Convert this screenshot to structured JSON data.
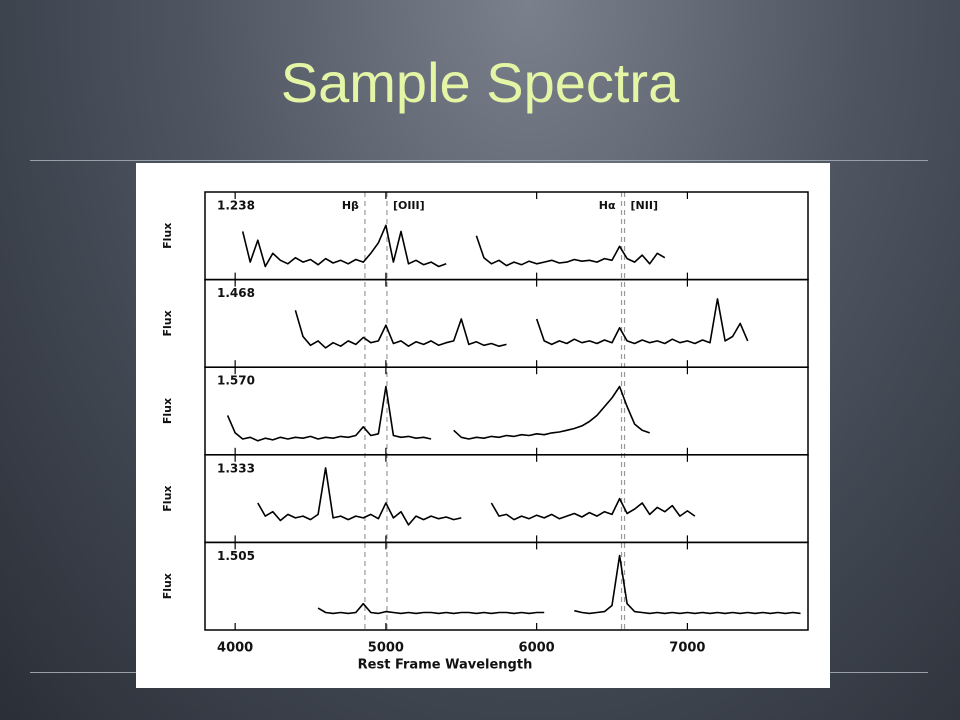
{
  "slide": {
    "title": "Sample Spectra"
  },
  "chart_data": {
    "type": "line",
    "xlabel": "Rest Frame Wavelength",
    "ylabel": "Flux",
    "xlim": [
      3800,
      7800
    ],
    "ylim": [
      0,
      1
    ],
    "xticks": [
      4000,
      5000,
      6000,
      7000
    ],
    "color": "#000000",
    "reference_lines": [
      {
        "x": 4861,
        "label": "Hβ"
      },
      {
        "x": 5007,
        "label": "[OIII]"
      },
      {
        "x": 6563,
        "label": "Hα"
      },
      {
        "x": 6583,
        "label": "[NII]"
      }
    ],
    "panels": [
      {
        "label": "1.238",
        "x": [
          4050,
          4100,
          4150,
          4200,
          4250,
          4300,
          4350,
          4400,
          4450,
          4500,
          4550,
          4600,
          4650,
          4700,
          4750,
          4800,
          4850,
          4900,
          4950,
          5000,
          5050,
          5100,
          5150,
          5200,
          5250,
          5300,
          5350,
          5400,
          5500,
          5600,
          5650,
          5700,
          5750,
          5800,
          5850,
          5900,
          5950,
          6000,
          6050,
          6100,
          6150,
          6200,
          6250,
          6300,
          6350,
          6400,
          6450,
          6500,
          6550,
          6600,
          6650,
          6700,
          6750,
          6800,
          6850
        ],
        "values": [
          0.55,
          0.2,
          0.45,
          0.15,
          0.3,
          0.22,
          0.18,
          0.25,
          0.2,
          0.23,
          0.17,
          0.24,
          0.19,
          0.22,
          0.18,
          0.23,
          0.2,
          0.3,
          0.42,
          0.62,
          0.2,
          0.55,
          0.18,
          0.22,
          0.17,
          0.2,
          0.15,
          0.18,
          null,
          0.5,
          0.25,
          0.18,
          0.22,
          0.16,
          0.2,
          0.17,
          0.21,
          0.18,
          0.2,
          0.22,
          0.19,
          0.2,
          0.23,
          0.21,
          0.22,
          0.2,
          0.24,
          0.22,
          0.38,
          0.24,
          0.2,
          0.28,
          0.18,
          0.3,
          0.25
        ]
      },
      {
        "label": "1.468",
        "x": [
          4400,
          4450,
          4500,
          4550,
          4600,
          4650,
          4700,
          4750,
          4800,
          4850,
          4900,
          4950,
          5000,
          5050,
          5100,
          5150,
          5200,
          5250,
          5300,
          5350,
          5400,
          5450,
          5500,
          5550,
          5600,
          5650,
          5700,
          5750,
          5800,
          5900,
          6000,
          6050,
          6100,
          6150,
          6200,
          6250,
          6300,
          6350,
          6400,
          6450,
          6500,
          6550,
          6600,
          6650,
          6700,
          6750,
          6800,
          6850,
          6900,
          6950,
          7000,
          7050,
          7100,
          7150,
          7200,
          7250,
          7300,
          7350,
          7400
        ],
        "values": [
          0.65,
          0.35,
          0.25,
          0.3,
          0.22,
          0.28,
          0.24,
          0.3,
          0.26,
          0.34,
          0.28,
          0.3,
          0.48,
          0.27,
          0.3,
          0.24,
          0.29,
          0.26,
          0.3,
          0.25,
          0.28,
          0.3,
          0.55,
          0.26,
          0.29,
          0.25,
          0.27,
          0.24,
          0.26,
          null,
          0.55,
          0.3,
          0.26,
          0.3,
          0.27,
          0.32,
          0.28,
          0.3,
          0.27,
          0.31,
          0.28,
          0.45,
          0.3,
          0.27,
          0.31,
          0.28,
          0.3,
          0.27,
          0.32,
          0.28,
          0.3,
          0.27,
          0.31,
          0.28,
          0.78,
          0.3,
          0.35,
          0.5,
          0.3
        ]
      },
      {
        "label": "1.570",
        "x": [
          3950,
          4000,
          4050,
          4100,
          4150,
          4200,
          4250,
          4300,
          4350,
          4400,
          4450,
          4500,
          4550,
          4600,
          4650,
          4700,
          4750,
          4800,
          4850,
          4900,
          4950,
          5000,
          5050,
          5100,
          5150,
          5200,
          5250,
          5300,
          5400,
          5450,
          5500,
          5550,
          5600,
          5650,
          5700,
          5750,
          5800,
          5850,
          5900,
          5950,
          6000,
          6050,
          6100,
          6150,
          6200,
          6250,
          6300,
          6350,
          6400,
          6450,
          6500,
          6550,
          6600,
          6650,
          6700,
          6750
        ],
        "values": [
          0.45,
          0.25,
          0.18,
          0.2,
          0.16,
          0.19,
          0.17,
          0.2,
          0.18,
          0.2,
          0.19,
          0.21,
          0.18,
          0.2,
          0.19,
          0.21,
          0.2,
          0.22,
          0.32,
          0.22,
          0.24,
          0.78,
          0.22,
          0.2,
          0.21,
          0.19,
          0.2,
          0.18,
          null,
          0.28,
          0.2,
          0.18,
          0.2,
          0.19,
          0.21,
          0.2,
          0.22,
          0.21,
          0.23,
          0.22,
          0.24,
          0.23,
          0.25,
          0.26,
          0.28,
          0.3,
          0.33,
          0.38,
          0.45,
          0.55,
          0.65,
          0.78,
          0.55,
          0.35,
          0.28,
          0.25
        ]
      },
      {
        "label": "1.333",
        "x": [
          4150,
          4200,
          4250,
          4300,
          4350,
          4400,
          4450,
          4500,
          4550,
          4600,
          4650,
          4700,
          4750,
          4800,
          4850,
          4900,
          4950,
          5000,
          5050,
          5100,
          5150,
          5200,
          5250,
          5300,
          5350,
          5400,
          5450,
          5500,
          5600,
          5700,
          5750,
          5800,
          5850,
          5900,
          5950,
          6000,
          6050,
          6100,
          6150,
          6200,
          6250,
          6300,
          6350,
          6400,
          6450,
          6500,
          6550,
          6600,
          6650,
          6700,
          6750,
          6800,
          6850,
          6900,
          6950,
          7000,
          7050
        ],
        "values": [
          0.45,
          0.3,
          0.35,
          0.25,
          0.32,
          0.28,
          0.3,
          0.26,
          0.32,
          0.85,
          0.28,
          0.3,
          0.26,
          0.3,
          0.28,
          0.32,
          0.27,
          0.45,
          0.28,
          0.35,
          0.2,
          0.3,
          0.26,
          0.3,
          0.27,
          0.29,
          0.26,
          0.28,
          null,
          0.45,
          0.3,
          0.32,
          0.26,
          0.3,
          0.27,
          0.31,
          0.28,
          0.32,
          0.27,
          0.3,
          0.33,
          0.29,
          0.34,
          0.3,
          0.35,
          0.32,
          0.5,
          0.33,
          0.38,
          0.45,
          0.32,
          0.4,
          0.35,
          0.42,
          0.3,
          0.36,
          0.3
        ]
      },
      {
        "label": "1.505",
        "x": [
          4550,
          4600,
          4650,
          4700,
          4750,
          4800,
          4850,
          4900,
          4950,
          5000,
          5050,
          5100,
          5150,
          5200,
          5250,
          5300,
          5350,
          5400,
          5450,
          5500,
          5550,
          5600,
          5650,
          5700,
          5750,
          5800,
          5850,
          5900,
          5950,
          6000,
          6050,
          6150,
          6250,
          6300,
          6350,
          6400,
          6450,
          6500,
          6550,
          6600,
          6650,
          6700,
          6750,
          6800,
          6850,
          6900,
          6950,
          7000,
          7050,
          7100,
          7150,
          7200,
          7250,
          7300,
          7350,
          7400,
          7450,
          7500,
          7550,
          7600,
          7650,
          7700,
          7750
        ],
        "values": [
          0.25,
          0.2,
          0.19,
          0.2,
          0.19,
          0.2,
          0.3,
          0.2,
          0.19,
          0.21,
          0.2,
          0.19,
          0.2,
          0.19,
          0.2,
          0.2,
          0.19,
          0.2,
          0.19,
          0.2,
          0.2,
          0.19,
          0.2,
          0.19,
          0.2,
          0.2,
          0.19,
          0.2,
          0.19,
          0.2,
          0.2,
          null,
          0.22,
          0.2,
          0.19,
          0.2,
          0.21,
          0.28,
          0.85,
          0.3,
          0.21,
          0.2,
          0.19,
          0.2,
          0.19,
          0.2,
          0.19,
          0.2,
          0.19,
          0.2,
          0.19,
          0.2,
          0.19,
          0.2,
          0.19,
          0.2,
          0.19,
          0.2,
          0.19,
          0.2,
          0.19,
          0.2,
          0.19
        ]
      }
    ]
  }
}
